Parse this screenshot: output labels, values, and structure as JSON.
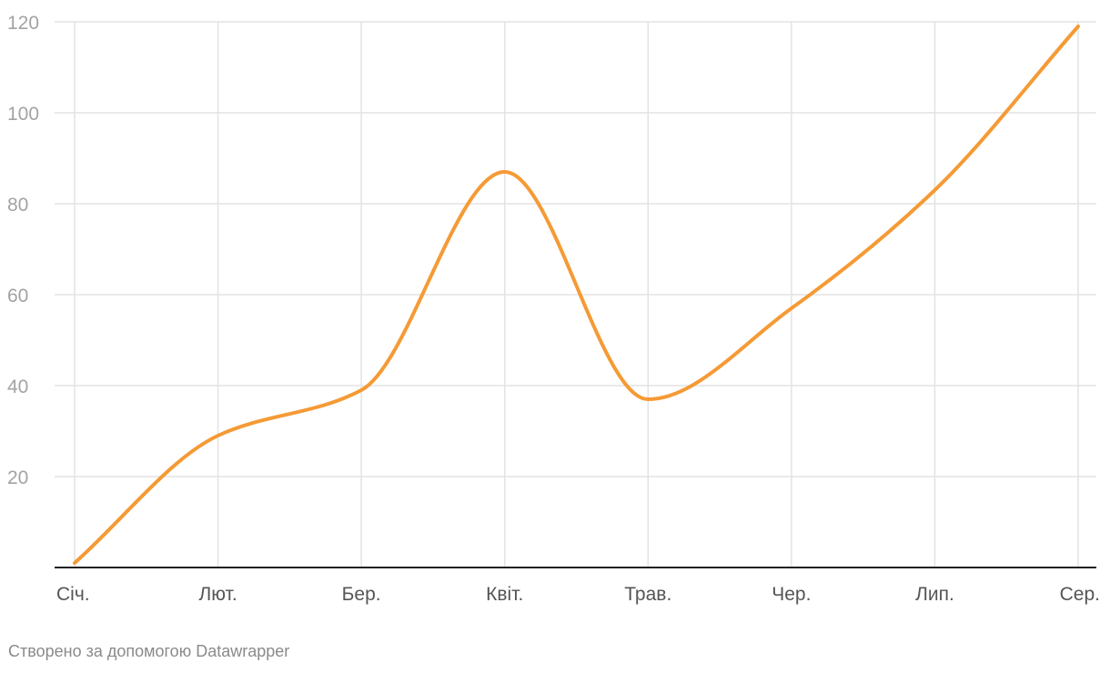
{
  "chart_data": {
    "type": "line",
    "categories": [
      "Січ.",
      "Лют.",
      "Бер.",
      "Квіт.",
      "Трав.",
      "Чер.",
      "Лип.",
      "Сер."
    ],
    "series": [
      {
        "values": [
          1,
          29,
          39,
          87,
          37,
          57,
          83,
          119
        ],
        "color": "#f59a35"
      }
    ],
    "ylim": [
      0,
      120
    ],
    "yticks": [
      20,
      40,
      60,
      80,
      100,
      120
    ],
    "grid": true,
    "smooth": true
  },
  "footer": {
    "credit": "Створено за допомогою Datawrapper"
  }
}
